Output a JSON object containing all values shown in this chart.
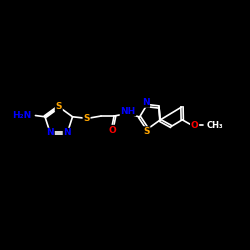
{
  "bg_color": "#000000",
  "bond_color": "#ffffff",
  "N_color": "#0000ff",
  "S_color": "#ffa500",
  "O_color": "#ff0000",
  "bond_width": 1.2,
  "figsize": [
    2.5,
    2.5
  ],
  "dpi": 100,
  "xlim": [
    0,
    10
  ],
  "ylim": [
    0,
    10
  ],
  "font_size": 6.5
}
